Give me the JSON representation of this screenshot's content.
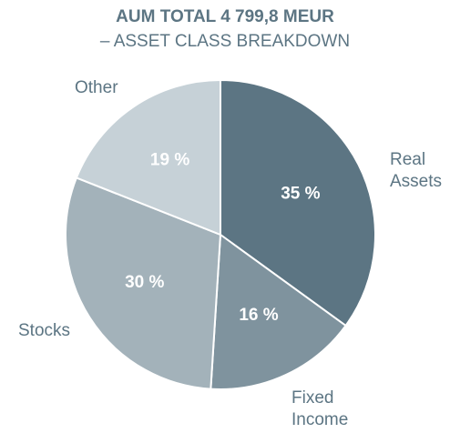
{
  "chart_data": {
    "type": "pie",
    "title": "AUM TOTAL 4 799,8 MEUR",
    "subtitle": "– ASSET CLASS BREAKDOWN",
    "categories": [
      "Real Assets",
      "Fixed Income",
      "Stocks",
      "Other"
    ],
    "values": [
      35,
      16,
      30,
      19
    ],
    "value_labels": [
      "35 %",
      "16 %",
      "30 %",
      "19 %"
    ],
    "colors": [
      "#5c7583",
      "#7f939e",
      "#a3b2ba",
      "#c6d1d7"
    ]
  }
}
